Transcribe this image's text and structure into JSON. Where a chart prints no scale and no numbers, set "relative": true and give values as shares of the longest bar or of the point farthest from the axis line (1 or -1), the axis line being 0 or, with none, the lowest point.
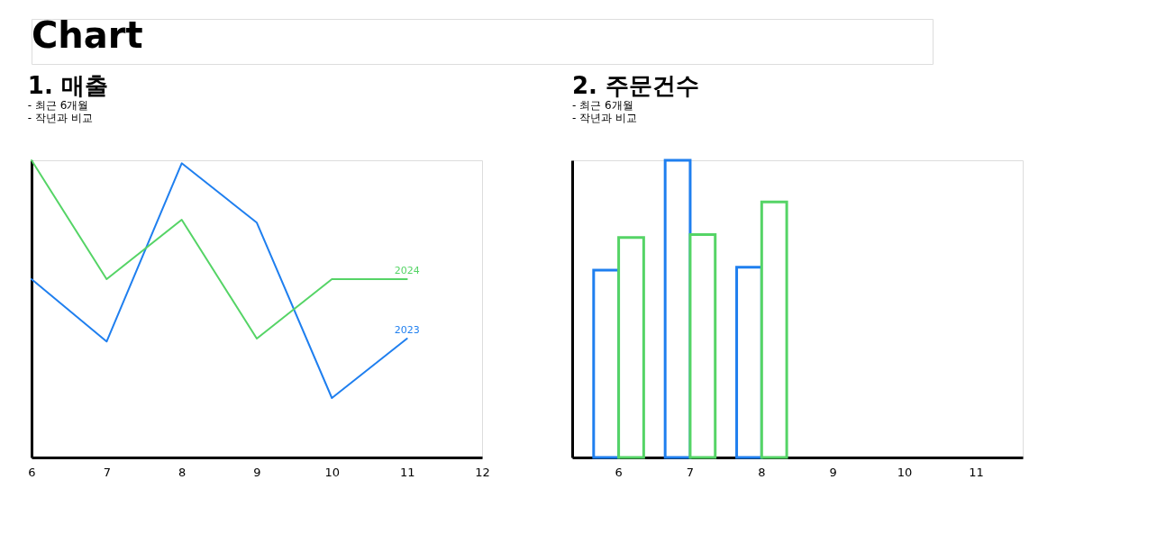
{
  "chart_data": [
    {
      "type": "other",
      "title": "Chart"
    },
    {
      "type": "line",
      "title": "1. 매출",
      "annotations": [
        "- 최근 6개월",
        "- 작년과 비교"
      ],
      "relative": true,
      "categories": [
        "6",
        "7",
        "8",
        "9",
        "10",
        "11",
        "12"
      ],
      "series": [
        {
          "name": "2023",
          "color": "#1f7fef",
          "values": [
            0.6,
            0.39,
            0.99,
            0.79,
            0.2,
            0.4,
            null
          ]
        },
        {
          "name": "2024",
          "color": "#55d466",
          "values": [
            1,
            0.6,
            0.8,
            0.4,
            0.6,
            0.6,
            null
          ]
        }
      ]
    },
    {
      "type": "bar",
      "title": "2. 주문건수",
      "annotations": [
        "- 최근 6개월",
        "- 작년과 비교"
      ],
      "relative": true,
      "categories": [
        "6",
        "7",
        "8",
        "9",
        "10",
        "11"
      ],
      "series": [
        {
          "color": "#1f7fef",
          "values": [
            0.63,
            1,
            0.64,
            null,
            null,
            null
          ]
        },
        {
          "color": "#55d466",
          "values": [
            0.74,
            0.75,
            0.86,
            null,
            null,
            null
          ]
        }
      ]
    }
  ]
}
